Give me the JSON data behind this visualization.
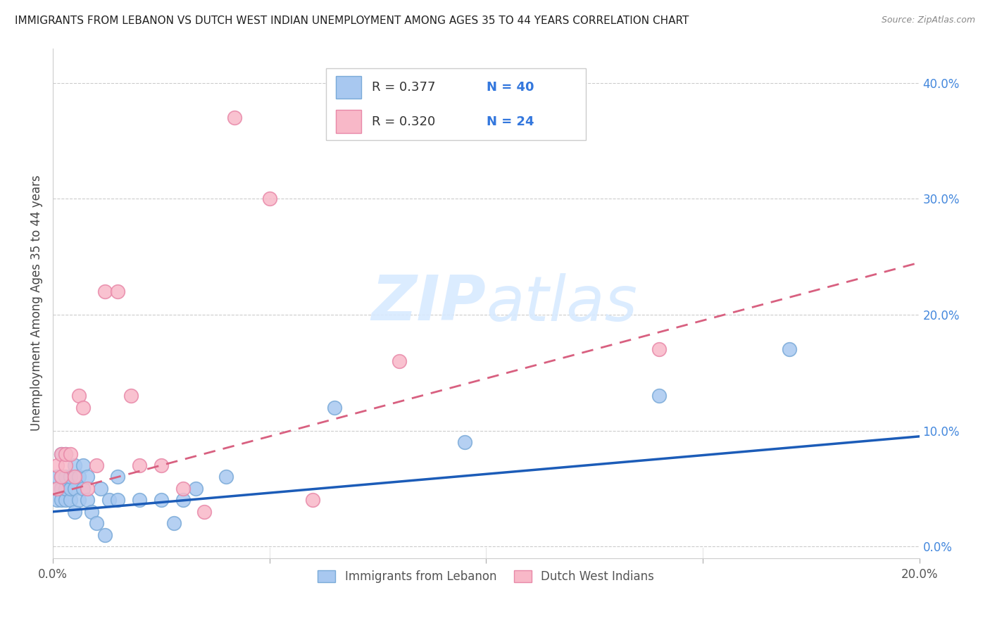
{
  "title": "IMMIGRANTS FROM LEBANON VS DUTCH WEST INDIAN UNEMPLOYMENT AMONG AGES 35 TO 44 YEARS CORRELATION CHART",
  "source": "Source: ZipAtlas.com",
  "ylabel": "Unemployment Among Ages 35 to 44 years",
  "xlim": [
    0.0,
    0.2
  ],
  "ylim": [
    -0.01,
    0.43
  ],
  "xticks": [
    0.0,
    0.05,
    0.1,
    0.15,
    0.2
  ],
  "xtick_labels": [
    "0.0%",
    "",
    "",
    "",
    "20.0%"
  ],
  "yticks_right": [
    0.0,
    0.1,
    0.2,
    0.3,
    0.4
  ],
  "legend_r1": "0.377",
  "legend_n1": "40",
  "legend_r2": "0.320",
  "legend_n2": "24",
  "legend_label1": "Immigrants from Lebanon",
  "legend_label2": "Dutch West Indians",
  "blue_color": "#A8C8F0",
  "blue_edge_color": "#7AAAD8",
  "pink_color": "#F8B8C8",
  "pink_edge_color": "#E888A8",
  "blue_line_color": "#1C5CB8",
  "pink_line_color": "#D86080",
  "watermark_zip": "ZIP",
  "watermark_atlas": "atlas",
  "blue_x": [
    0.001,
    0.001,
    0.001,
    0.002,
    0.002,
    0.002,
    0.002,
    0.003,
    0.003,
    0.003,
    0.003,
    0.004,
    0.004,
    0.004,
    0.005,
    0.005,
    0.005,
    0.006,
    0.006,
    0.007,
    0.007,
    0.008,
    0.008,
    0.009,
    0.01,
    0.011,
    0.012,
    0.013,
    0.015,
    0.015,
    0.02,
    0.025,
    0.028,
    0.03,
    0.033,
    0.04,
    0.065,
    0.095,
    0.14,
    0.17
  ],
  "blue_y": [
    0.04,
    0.05,
    0.06,
    0.04,
    0.05,
    0.06,
    0.08,
    0.04,
    0.05,
    0.06,
    0.08,
    0.04,
    0.05,
    0.06,
    0.03,
    0.05,
    0.07,
    0.04,
    0.06,
    0.05,
    0.07,
    0.04,
    0.06,
    0.03,
    0.02,
    0.05,
    0.01,
    0.04,
    0.04,
    0.06,
    0.04,
    0.04,
    0.02,
    0.04,
    0.05,
    0.06,
    0.12,
    0.09,
    0.13,
    0.17
  ],
  "pink_x": [
    0.001,
    0.001,
    0.002,
    0.002,
    0.003,
    0.003,
    0.004,
    0.005,
    0.006,
    0.007,
    0.008,
    0.01,
    0.012,
    0.015,
    0.018,
    0.02,
    0.025,
    0.03,
    0.035,
    0.042,
    0.05,
    0.06,
    0.08,
    0.14
  ],
  "pink_y": [
    0.05,
    0.07,
    0.06,
    0.08,
    0.07,
    0.08,
    0.08,
    0.06,
    0.13,
    0.12,
    0.05,
    0.07,
    0.22,
    0.22,
    0.13,
    0.07,
    0.07,
    0.05,
    0.03,
    0.37,
    0.3,
    0.04,
    0.16,
    0.17
  ],
  "blue_trend_x": [
    0.0,
    0.2
  ],
  "blue_trend_y": [
    0.03,
    0.095
  ],
  "pink_trend_x": [
    0.0,
    0.2
  ],
  "pink_trend_y": [
    0.045,
    0.245
  ]
}
